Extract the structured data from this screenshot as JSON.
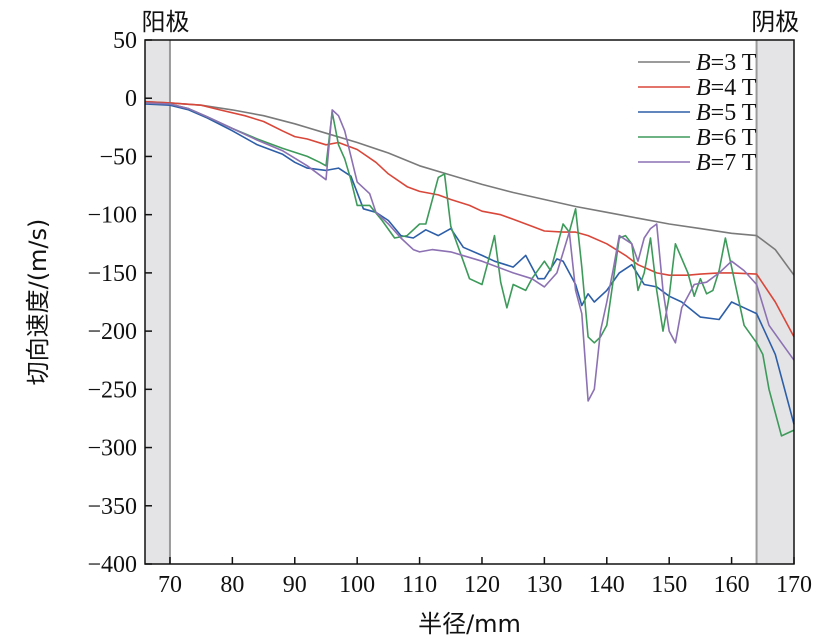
{
  "chart_data": {
    "type": "line",
    "title": "",
    "xlabel": "半径/mm",
    "ylabel": "切向速度/(m/s)",
    "xlim": [
      66,
      170
    ],
    "ylim": [
      -400,
      50
    ],
    "xticks": [
      70,
      80,
      90,
      100,
      110,
      120,
      130,
      140,
      150,
      160,
      170
    ],
    "yticks": [
      50,
      0,
      -50,
      -100,
      -150,
      -200,
      -250,
      -300,
      -350,
      -400
    ],
    "grid": false,
    "legend_position": "top-right",
    "regions": [
      {
        "label": "阳极",
        "x0": 66,
        "x1": 70,
        "color": "#e4e4e6"
      },
      {
        "label": "阴极",
        "x0": 164,
        "x1": 170,
        "color": "#e4e4e6"
      }
    ],
    "series": [
      {
        "name_prefix": "B",
        "name": "=3 T",
        "color": "#7a7a7a",
        "x": [
          66,
          70,
          75,
          80,
          85,
          90,
          95,
          100,
          105,
          110,
          115,
          120,
          125,
          130,
          135,
          140,
          145,
          150,
          155,
          160,
          164,
          167,
          170
        ],
        "y": [
          -3,
          -4,
          -6,
          -10,
          -15,
          -22,
          -30,
          -38,
          -47,
          -58,
          -66,
          -74,
          -81,
          -87,
          -93,
          -98,
          -103,
          -108,
          -112,
          -116,
          -118,
          -130,
          -152
        ]
      },
      {
        "name_prefix": "B",
        "name": "=4 T",
        "color": "#d9473a",
        "x": [
          66,
          70,
          75,
          78,
          82,
          85,
          88,
          90,
          92,
          95,
          97,
          100,
          103,
          105,
          108,
          110,
          113,
          115,
          118,
          120,
          123,
          125,
          128,
          130,
          133,
          135,
          137,
          140,
          143,
          145,
          148,
          150,
          153,
          155,
          158,
          160,
          164,
          167,
          170
        ],
        "y": [
          -3,
          -4,
          -6,
          -10,
          -15,
          -20,
          -28,
          -33,
          -35,
          -40,
          -38,
          -44,
          -55,
          -65,
          -76,
          -80,
          -83,
          -87,
          -92,
          -97,
          -100,
          -104,
          -110,
          -114,
          -115,
          -115,
          -118,
          -125,
          -135,
          -143,
          -150,
          -152,
          -152,
          -151,
          -150,
          -150,
          -151,
          -175,
          -205
        ]
      },
      {
        "name_prefix": "B",
        "name": "=5 T",
        "color": "#2d5ea8",
        "x": [
          66,
          70,
          73,
          76,
          80,
          84,
          88,
          90,
          92,
          95,
          97,
          99,
          101,
          103,
          105,
          107,
          109,
          111,
          113,
          115,
          117,
          120,
          122,
          125,
          127,
          129,
          130,
          132,
          133,
          135,
          136,
          137,
          138,
          140,
          142,
          144,
          146,
          148,
          150,
          152,
          155,
          158,
          160,
          162,
          164,
          167,
          170
        ],
        "y": [
          -5,
          -6,
          -10,
          -17,
          -28,
          -40,
          -48,
          -55,
          -60,
          -62,
          -60,
          -67,
          -95,
          -98,
          -105,
          -118,
          -120,
          -113,
          -118,
          -112,
          -128,
          -135,
          -140,
          -145,
          -135,
          -155,
          -155,
          -138,
          -140,
          -160,
          -178,
          -168,
          -175,
          -165,
          -150,
          -143,
          -160,
          -162,
          -170,
          -175,
          -188,
          -190,
          -175,
          -180,
          -185,
          -220,
          -280
        ]
      },
      {
        "name_prefix": "B",
        "name": "=6 T",
        "color": "#3d9a5a",
        "x": [
          66,
          70,
          73,
          76,
          80,
          84,
          88,
          92,
          94,
          95,
          96,
          97,
          98,
          99,
          100,
          102,
          104,
          106,
          108,
          110,
          111,
          113,
          114,
          115,
          117,
          118,
          120,
          121,
          122,
          123,
          124,
          125,
          127,
          128,
          130,
          131,
          133,
          134,
          135,
          136,
          137,
          138,
          139,
          140,
          142,
          143,
          144,
          145,
          146,
          147,
          148,
          149,
          150,
          151,
          153,
          154,
          155,
          156,
          157,
          158,
          159,
          160,
          162,
          164,
          165,
          166,
          168,
          170
        ],
        "y": [
          -4,
          -5,
          -9,
          -16,
          -26,
          -35,
          -43,
          -50,
          -55,
          -58,
          -12,
          -40,
          -52,
          -70,
          -92,
          -92,
          -105,
          -120,
          -118,
          -108,
          -108,
          -68,
          -65,
          -110,
          -140,
          -155,
          -160,
          -140,
          -118,
          -158,
          -180,
          -160,
          -165,
          -155,
          -140,
          -148,
          -108,
          -115,
          -95,
          -145,
          -205,
          -210,
          -205,
          -195,
          -120,
          -118,
          -125,
          -165,
          -150,
          -120,
          -165,
          -200,
          -170,
          -125,
          -150,
          -170,
          -155,
          -168,
          -165,
          -148,
          -120,
          -145,
          -195,
          -210,
          -220,
          -250,
          -290,
          -285
        ]
      },
      {
        "name_prefix": "B",
        "name": "=7 T",
        "color": "#8c71b3",
        "x": [
          66,
          70,
          73,
          76,
          80,
          84,
          88,
          92,
          95,
          96,
          97,
          98,
          100,
          102,
          103,
          105,
          107,
          109,
          110,
          112,
          115,
          120,
          125,
          128,
          130,
          132,
          134,
          135,
          136,
          137,
          138,
          139,
          140,
          141,
          142,
          144,
          145,
          146,
          147,
          148,
          149,
          150,
          151,
          152,
          154,
          156,
          158,
          160,
          162,
          164,
          166,
          168,
          170
        ],
        "y": [
          -4,
          -5,
          -9,
          -16,
          -26,
          -36,
          -45,
          -58,
          -70,
          -10,
          -15,
          -28,
          -72,
          -82,
          -98,
          -108,
          -120,
          -130,
          -132,
          -130,
          -132,
          -140,
          -150,
          -155,
          -162,
          -150,
          -115,
          -165,
          -185,
          -260,
          -250,
          -200,
          -175,
          -148,
          -118,
          -125,
          -140,
          -120,
          -112,
          -108,
          -165,
          -200,
          -210,
          -180,
          -160,
          -158,
          -150,
          -140,
          -148,
          -160,
          -195,
          -210,
          -225
        ]
      }
    ]
  }
}
